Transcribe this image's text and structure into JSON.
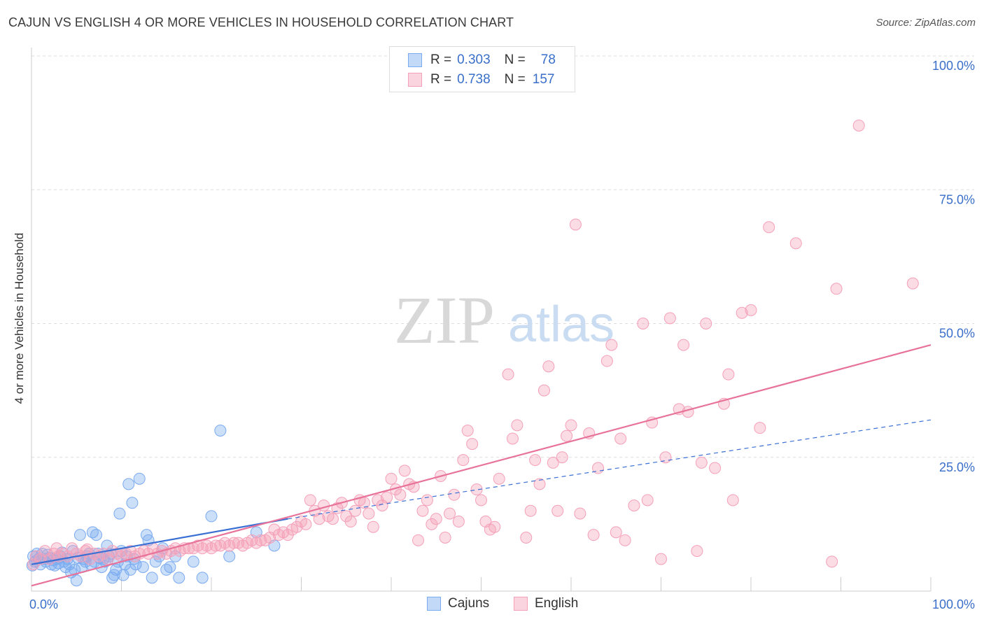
{
  "title": "CAJUN VS ENGLISH 4 OR MORE VEHICLES IN HOUSEHOLD CORRELATION CHART",
  "source": "Source: ZipAtlas.com",
  "watermark": {
    "zip": "ZIP",
    "atlas": "atlas"
  },
  "legend_top": {
    "rows": [
      {
        "r_label": "R =",
        "r_value": "0.303",
        "n_label": "N =",
        "n_value": "78",
        "color": "#7aaaf0"
      },
      {
        "r_label": "R =",
        "r_value": "0.738",
        "n_label": "N =",
        "n_value": "157",
        "color": "#f4a0b8"
      }
    ]
  },
  "legend_bottom": [
    {
      "label": "Cajuns",
      "color": "#7aaaf0"
    },
    {
      "label": "English",
      "color": "#f4a0b8"
    }
  ],
  "chart_data": {
    "type": "scatter",
    "title": "CAJUN VS ENGLISH 4 OR MORE VEHICLES IN HOUSEHOLD CORRELATION CHART",
    "xlabel": "",
    "ylabel": "4 or more Vehicles in Household",
    "xlim": [
      0,
      100
    ],
    "ylim": [
      0,
      100
    ],
    "x_tick_labels": [
      "0.0%",
      "100.0%"
    ],
    "y_tick_labels": [
      "100.0%",
      "75.0%",
      "50.0%",
      "25.0%"
    ],
    "y_ticks": [
      100,
      75,
      50,
      25
    ],
    "grid": true,
    "series": [
      {
        "name": "Cajuns",
        "color": "#7aaaf0",
        "line_color": "#3a6fd4",
        "trend": {
          "x0": 0,
          "y0": 5.0,
          "x1": 28.5,
          "y1": 13.5,
          "dashed_to_x": 100,
          "dashed_to_y": 32.0
        },
        "points": [
          [
            0.2,
            6.5
          ],
          [
            0.4,
            5.5
          ],
          [
            0.6,
            7.0
          ],
          [
            0.8,
            6.0
          ],
          [
            1.0,
            5.0
          ],
          [
            1.2,
            7.0
          ],
          [
            1.4,
            6.0
          ],
          [
            1.6,
            5.5
          ],
          [
            1.8,
            6.8
          ],
          [
            2.0,
            6.2
          ],
          [
            2.2,
            5.0
          ],
          [
            2.4,
            5.8
          ],
          [
            2.6,
            4.8
          ],
          [
            2.8,
            6.0
          ],
          [
            3.0,
            5.2
          ],
          [
            3.2,
            6.5
          ],
          [
            3.4,
            7.2
          ],
          [
            3.6,
            5.5
          ],
          [
            3.8,
            4.5
          ],
          [
            4.0,
            6.0
          ],
          [
            4.2,
            5.0
          ],
          [
            4.4,
            3.5
          ],
          [
            4.6,
            7.5
          ],
          [
            4.8,
            4.0
          ],
          [
            5.0,
            2.0
          ],
          [
            5.2,
            6.2
          ],
          [
            5.4,
            10.5
          ],
          [
            5.6,
            4.5
          ],
          [
            5.8,
            6.0
          ],
          [
            6.0,
            5.5
          ],
          [
            6.2,
            6.5
          ],
          [
            6.4,
            7.0
          ],
          [
            6.6,
            5.0
          ],
          [
            6.8,
            11.0
          ],
          [
            7.0,
            5.5
          ],
          [
            7.2,
            10.5
          ],
          [
            7.4,
            7.0
          ],
          [
            7.6,
            6.2
          ],
          [
            7.8,
            4.5
          ],
          [
            8.0,
            6.0
          ],
          [
            8.2,
            5.5
          ],
          [
            8.4,
            8.5
          ],
          [
            8.6,
            6.5
          ],
          [
            8.8,
            7.0
          ],
          [
            9.0,
            2.5
          ],
          [
            9.2,
            3.0
          ],
          [
            9.4,
            4.0
          ],
          [
            9.6,
            5.5
          ],
          [
            9.8,
            14.5
          ],
          [
            10.0,
            7.5
          ],
          [
            10.2,
            3.0
          ],
          [
            10.4,
            5.0
          ],
          [
            10.6,
            6.5
          ],
          [
            10.8,
            20.0
          ],
          [
            11.0,
            4.0
          ],
          [
            11.2,
            16.5
          ],
          [
            11.4,
            6.0
          ],
          [
            11.6,
            5.0
          ],
          [
            12.0,
            21.0
          ],
          [
            12.4,
            4.5
          ],
          [
            12.8,
            10.5
          ],
          [
            13.0,
            9.5
          ],
          [
            13.4,
            2.5
          ],
          [
            13.8,
            5.5
          ],
          [
            14.2,
            6.5
          ],
          [
            14.6,
            8.0
          ],
          [
            15.0,
            4.0
          ],
          [
            15.4,
            4.5
          ],
          [
            16.0,
            6.5
          ],
          [
            16.4,
            2.5
          ],
          [
            18.0,
            5.5
          ],
          [
            19.0,
            2.5
          ],
          [
            20.0,
            14.0
          ],
          [
            21.0,
            30.0
          ],
          [
            22.0,
            6.5
          ],
          [
            25.0,
            11.0
          ],
          [
            27.0,
            8.5
          ],
          [
            0.1,
            4.8
          ]
        ]
      },
      {
        "name": "English",
        "color": "#f4a0b8",
        "line_color": "#e8739a",
        "trend": {
          "x0": 0,
          "y0": 1.0,
          "x1": 100,
          "y1": 46.0
        },
        "points": [
          [
            0.5,
            6.5
          ],
          [
            1.0,
            6.0
          ],
          [
            1.5,
            7.5
          ],
          [
            2.0,
            6.0
          ],
          [
            2.5,
            7.0
          ],
          [
            3.0,
            6.5
          ],
          [
            3.5,
            7.0
          ],
          [
            4.0,
            6.5
          ],
          [
            4.5,
            8.0
          ],
          [
            5.0,
            7.0
          ],
          [
            5.5,
            6.5
          ],
          [
            6.0,
            7.5
          ],
          [
            6.5,
            6.0
          ],
          [
            7.0,
            7.0
          ],
          [
            7.5,
            6.5
          ],
          [
            8.0,
            7.0
          ],
          [
            8.5,
            6.0
          ],
          [
            9.0,
            7.5
          ],
          [
            9.5,
            7.0
          ],
          [
            10.0,
            6.5
          ],
          [
            10.5,
            7.0
          ],
          [
            11.0,
            7.5
          ],
          [
            11.5,
            6.5
          ],
          [
            12.0,
            7.0
          ],
          [
            12.5,
            7.5
          ],
          [
            13.0,
            7.0
          ],
          [
            13.5,
            8.0
          ],
          [
            14.0,
            7.0
          ],
          [
            14.5,
            7.5
          ],
          [
            15.0,
            7.0
          ],
          [
            15.5,
            7.5
          ],
          [
            16.0,
            8.0
          ],
          [
            16.5,
            7.5
          ],
          [
            17.0,
            8.0
          ],
          [
            17.5,
            8.0
          ],
          [
            18.0,
            8.0
          ],
          [
            18.5,
            8.5
          ],
          [
            19.0,
            8.0
          ],
          [
            19.5,
            8.5
          ],
          [
            20.0,
            8.0
          ],
          [
            20.5,
            8.5
          ],
          [
            21.0,
            8.5
          ],
          [
            21.5,
            9.0
          ],
          [
            22.0,
            8.5
          ],
          [
            22.5,
            9.0
          ],
          [
            23.0,
            9.0
          ],
          [
            23.5,
            8.5
          ],
          [
            24.0,
            9.0
          ],
          [
            24.5,
            9.5
          ],
          [
            25.0,
            9.0
          ],
          [
            25.5,
            9.5
          ],
          [
            26.0,
            9.5
          ],
          [
            26.5,
            10.0
          ],
          [
            27.0,
            11.5
          ],
          [
            27.5,
            10.5
          ],
          [
            28.0,
            11.0
          ],
          [
            28.5,
            10.5
          ],
          [
            29.0,
            11.5
          ],
          [
            29.5,
            12.0
          ],
          [
            30.0,
            13.0
          ],
          [
            30.5,
            12.5
          ],
          [
            31.0,
            17.0
          ],
          [
            31.5,
            15.0
          ],
          [
            32.0,
            13.5
          ],
          [
            32.5,
            16.0
          ],
          [
            33.0,
            14.0
          ],
          [
            33.5,
            13.5
          ],
          [
            34.0,
            15.5
          ],
          [
            34.5,
            16.5
          ],
          [
            35.0,
            14.0
          ],
          [
            35.5,
            13.0
          ],
          [
            36.0,
            15.0
          ],
          [
            36.5,
            17.0
          ],
          [
            37.0,
            16.5
          ],
          [
            37.5,
            14.5
          ],
          [
            38.0,
            12.0
          ],
          [
            38.5,
            17.0
          ],
          [
            39.0,
            16.0
          ],
          [
            39.5,
            17.5
          ],
          [
            40.0,
            21.0
          ],
          [
            40.5,
            19.0
          ],
          [
            41.0,
            18.0
          ],
          [
            41.5,
            22.5
          ],
          [
            42.0,
            20.0
          ],
          [
            42.5,
            19.5
          ],
          [
            43.0,
            9.5
          ],
          [
            43.5,
            15.0
          ],
          [
            44.0,
            17.0
          ],
          [
            44.5,
            12.5
          ],
          [
            45.0,
            13.5
          ],
          [
            45.5,
            21.5
          ],
          [
            46.0,
            10.0
          ],
          [
            46.5,
            14.5
          ],
          [
            47.0,
            18.0
          ],
          [
            47.5,
            13.0
          ],
          [
            48.0,
            24.5
          ],
          [
            48.5,
            30.0
          ],
          [
            49.0,
            27.5
          ],
          [
            49.5,
            19.0
          ],
          [
            50.0,
            17.0
          ],
          [
            50.5,
            13.0
          ],
          [
            51.0,
            11.5
          ],
          [
            51.5,
            12.0
          ],
          [
            52.0,
            21.0
          ],
          [
            53.0,
            40.5
          ],
          [
            53.5,
            28.5
          ],
          [
            54.0,
            31.0
          ],
          [
            55.0,
            10.0
          ],
          [
            55.5,
            15.0
          ],
          [
            56.0,
            24.5
          ],
          [
            56.5,
            20.0
          ],
          [
            57.0,
            37.5
          ],
          [
            57.5,
            42.0
          ],
          [
            58.0,
            24.0
          ],
          [
            58.5,
            15.0
          ],
          [
            59.0,
            25.0
          ],
          [
            59.5,
            29.0
          ],
          [
            60.0,
            31.0
          ],
          [
            60.5,
            68.5
          ],
          [
            61.0,
            14.5
          ],
          [
            62.0,
            29.5
          ],
          [
            62.5,
            10.5
          ],
          [
            63.0,
            23.0
          ],
          [
            64.0,
            43.0
          ],
          [
            64.5,
            46.0
          ],
          [
            65.0,
            11.0
          ],
          [
            65.5,
            28.5
          ],
          [
            66.0,
            9.5
          ],
          [
            67.0,
            16.0
          ],
          [
            68.0,
            50.0
          ],
          [
            68.5,
            17.0
          ],
          [
            69.0,
            31.5
          ],
          [
            70.0,
            6.0
          ],
          [
            70.5,
            25.0
          ],
          [
            71.0,
            51.0
          ],
          [
            72.0,
            34.0
          ],
          [
            72.5,
            46.0
          ],
          [
            73.0,
            33.5
          ],
          [
            74.0,
            7.5
          ],
          [
            74.5,
            24.0
          ],
          [
            75.0,
            50.0
          ],
          [
            76.0,
            23.0
          ],
          [
            77.0,
            35.0
          ],
          [
            77.5,
            40.5
          ],
          [
            78.0,
            17.0
          ],
          [
            79.0,
            52.0
          ],
          [
            80.0,
            52.5
          ],
          [
            81.0,
            30.5
          ],
          [
            82.0,
            68.0
          ],
          [
            85.0,
            65.0
          ],
          [
            89.0,
            5.5
          ],
          [
            89.5,
            56.5
          ],
          [
            92.0,
            87.0
          ],
          [
            98.0,
            57.5
          ],
          [
            0.2,
            5.0
          ],
          [
            2.8,
            8.0
          ],
          [
            6.2,
            7.8
          ]
        ]
      }
    ]
  }
}
